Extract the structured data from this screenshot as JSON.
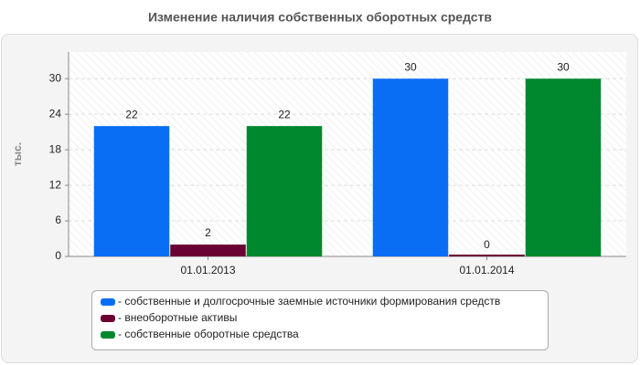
{
  "chart_data": {
    "type": "bar",
    "title": "Изменение наличия собственных оборотных средств",
    "y_label": "тыс.",
    "categories": [
      "01.01.2013",
      "01.01.2014"
    ],
    "series": [
      {
        "name": "- собственные и долгосрочные заемные источники формирования средств",
        "color": "#0a6ef5",
        "values": [
          22,
          30
        ]
      },
      {
        "name": "- внеоборотные активы",
        "color": "#6b0033",
        "values": [
          2,
          0
        ]
      },
      {
        "name": "- собственные оборотные средства",
        "color": "#00882e",
        "values": [
          22,
          30
        ]
      }
    ],
    "ylim": [
      0,
      34.5
    ],
    "yticks": [
      0,
      6,
      12,
      18,
      24,
      30
    ],
    "grid": true,
    "legend": "bottom"
  }
}
